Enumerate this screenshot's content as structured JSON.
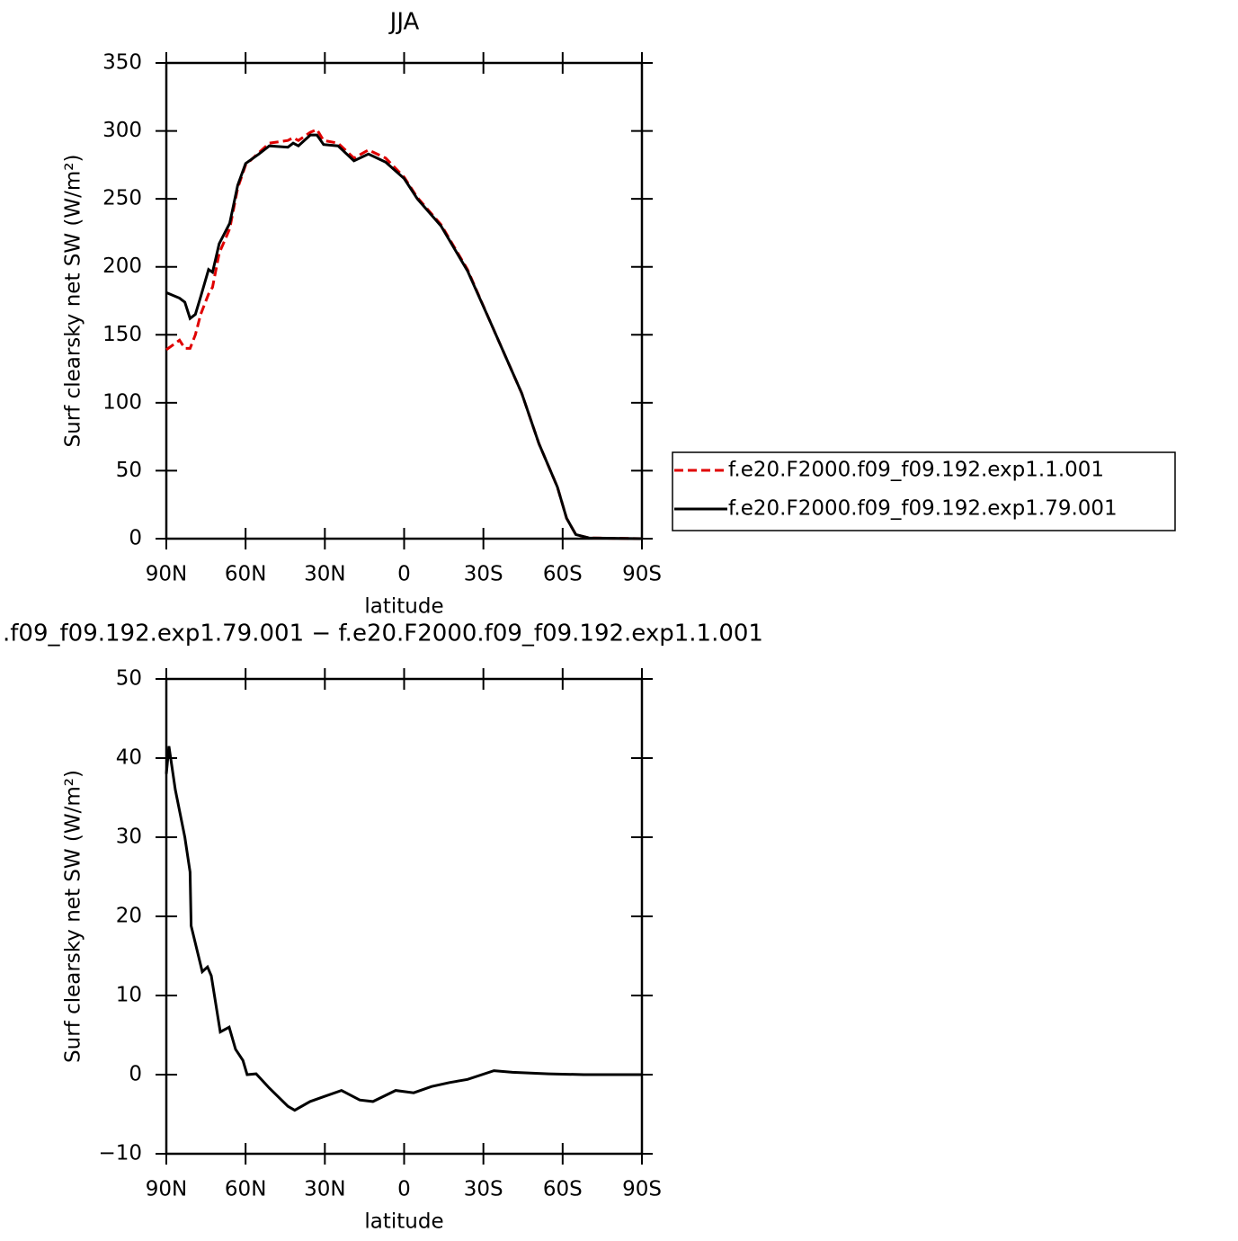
{
  "chart_data": [
    {
      "type": "line",
      "title": "JJA",
      "x_label": "latitude",
      "y_label": "Surf clearsky net SW (W/m²)",
      "x": [
        90,
        85,
        83,
        81,
        79,
        77,
        74,
        72.5,
        70,
        66,
        63,
        60,
        55,
        51,
        44,
        42,
        40,
        35.5,
        33,
        30.5,
        25,
        19,
        13.5,
        7,
        0,
        -5,
        -14,
        -24,
        -32.5,
        -44.5,
        -51,
        -58,
        -61.5,
        -65,
        -70,
        -90
      ],
      "series": [
        {
          "name": "f.e20.F2000.f09_f09.192.exp1.1.001",
          "color": "#e00000",
          "line_style": "dashed",
          "values": [
            139,
            146,
            140,
            140,
            150,
            165,
            180,
            185,
            210,
            228,
            258,
            275,
            284,
            291,
            293,
            295,
            293,
            299,
            301,
            293,
            291,
            280,
            286,
            280,
            266,
            251,
            231,
            198,
            160,
            107,
            70,
            38,
            15,
            3,
            0.5,
            0
          ]
        },
        {
          "name": "f.e20.F2000.f09_f09.192.exp1.79.001",
          "color": "#000000",
          "line_style": "solid",
          "values": [
            181,
            177,
            174,
            162,
            165,
            178,
            198,
            196,
            217,
            232,
            260,
            276,
            283,
            289,
            288,
            291,
            289,
            297,
            297,
            290,
            289,
            278,
            283,
            277,
            265,
            250,
            230,
            197,
            160,
            107,
            70,
            38,
            15,
            3,
            0.5,
            0
          ]
        }
      ],
      "xlim": [
        90,
        -90
      ],
      "xticks": [
        {
          "value": 90,
          "label": "90N"
        },
        {
          "value": 60,
          "label": "60N"
        },
        {
          "value": 30,
          "label": "30N"
        },
        0,
        {
          "value": -30,
          "label": "30S"
        },
        {
          "value": -60,
          "label": "60S"
        },
        {
          "value": -90,
          "label": "90S"
        }
      ],
      "ylim": [
        0,
        350
      ],
      "yticks": [
        0,
        50,
        100,
        150,
        200,
        250,
        300,
        350
      ],
      "legend": "right"
    },
    {
      "type": "line",
      "title": ".f09_f09.192.exp1.79.001 − f.e20.F2000.f09_f09.192.exp1.1.001",
      "x_label": "latitude",
      "y_label": "Surf clearsky net SW (W/m²)",
      "x": [
        90,
        89,
        86.6,
        83,
        81,
        80.6,
        76.4,
        74.4,
        73,
        69.6,
        66.2,
        63.8,
        61,
        59.4,
        56,
        51,
        44,
        41.4,
        35.6,
        30.5,
        23.7,
        16.8,
        11.8,
        3.2,
        -3.6,
        -10.4,
        -17.2,
        -24,
        -34,
        -41,
        -54.6,
        -68,
        -90
      ],
      "values": [
        38,
        41.5,
        36,
        30,
        25.6,
        18.8,
        13,
        13.6,
        12.5,
        5.4,
        6,
        3.2,
        1.8,
        0,
        0.1,
        -1.7,
        -4,
        -4.5,
        -3.4,
        -2.8,
        -2,
        -3.2,
        -3.4,
        -2,
        -2.3,
        -1.5,
        -1,
        -0.6,
        0.5,
        0.3,
        0.1,
        0,
        0
      ],
      "color": "#000000",
      "xlim": [
        90,
        -90
      ],
      "xticks": [
        {
          "value": 90,
          "label": "90N"
        },
        {
          "value": 60,
          "label": "60N"
        },
        {
          "value": 30,
          "label": "30N"
        },
        0,
        {
          "value": -30,
          "label": "30S"
        },
        {
          "value": -60,
          "label": "60S"
        },
        {
          "value": -90,
          "label": "90S"
        }
      ],
      "ylim": [
        -10,
        50
      ],
      "yticks": [
        {
          "value": -10,
          "label": "−10"
        },
        0,
        10,
        20,
        30,
        40,
        50
      ]
    }
  ]
}
